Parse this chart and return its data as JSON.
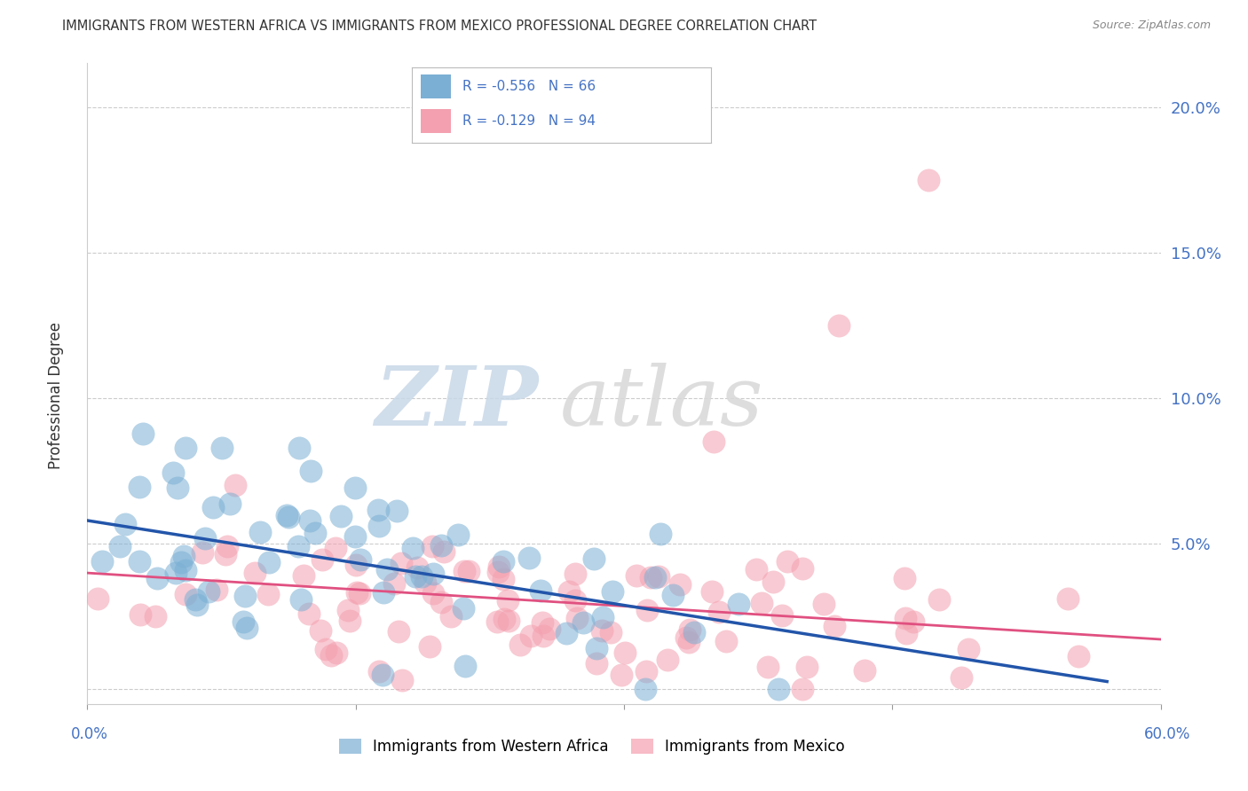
{
  "title": "IMMIGRANTS FROM WESTERN AFRICA VS IMMIGRANTS FROM MEXICO PROFESSIONAL DEGREE CORRELATION CHART",
  "source": "Source: ZipAtlas.com",
  "ylabel": "Professional Degree",
  "y_ticks": [
    0.0,
    0.05,
    0.1,
    0.15,
    0.2
  ],
  "y_tick_labels": [
    "",
    "5.0%",
    "10.0%",
    "15.0%",
    "20.0%"
  ],
  "x_min": 0.0,
  "x_max": 0.6,
  "y_min": -0.005,
  "y_max": 0.215,
  "series1_label": "Immigrants from Western Africa",
  "series1_color": "#7bafd4",
  "series1_line_color": "#2255aa",
  "series1_R": -0.556,
  "series1_N": 66,
  "series2_label": "Immigrants from Mexico",
  "series2_color": "#f4a0b0",
  "series2_line_color": "#e05080",
  "series2_R": -0.129,
  "series2_N": 94,
  "watermark_zip": "ZIP",
  "watermark_atlas": "atlas",
  "background_color": "#ffffff",
  "grid_color": "#cccccc"
}
